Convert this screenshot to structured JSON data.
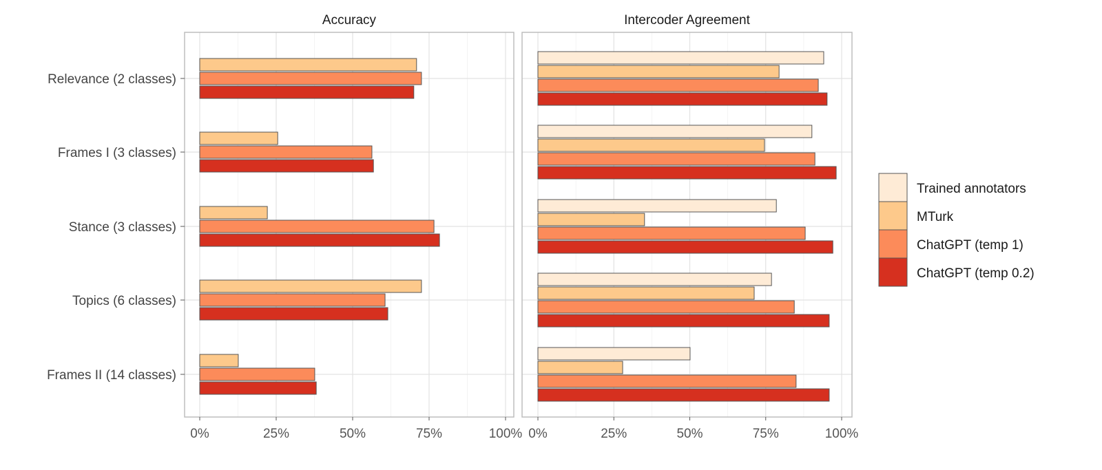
{
  "chart_data": {
    "type": "bar",
    "orientation": "horizontal",
    "categories": [
      "Relevance (2 classes)",
      "Frames I (3 classes)",
      "Stance (3 classes)",
      "Topics (6 classes)",
      "Frames II (14 classes)"
    ],
    "xlim": [
      0,
      100
    ],
    "x_ticks": [
      "0%",
      "25%",
      "50%",
      "75%",
      "100%"
    ],
    "grid": true,
    "legend_position": "right",
    "legend": [
      {
        "name": "Trained annotators",
        "color": "#feebd6"
      },
      {
        "name": "MTurk",
        "color": "#fdc98b"
      },
      {
        "name": "ChatGPT (temp 1)",
        "color": "#fc8b5a"
      },
      {
        "name": "ChatGPT (temp 0.2)",
        "color": "#d6301f"
      }
    ],
    "panels": [
      {
        "title": "Accuracy",
        "series": [
          {
            "name": "MTurk",
            "values": [
              70.9,
              25.5,
              22.1,
              72.5,
              12.6
            ]
          },
          {
            "name": "ChatGPT (temp 1)",
            "values": [
              72.5,
              56.3,
              76.6,
              60.6,
              37.6
            ]
          },
          {
            "name": "ChatGPT (temp 0.2)",
            "values": [
              70.0,
              56.8,
              78.4,
              61.5,
              38.1
            ]
          }
        ]
      },
      {
        "title": "Intercoder Agreement",
        "series": [
          {
            "name": "Trained annotators",
            "values": [
              94.1,
              90.2,
              78.5,
              76.9,
              50.1
            ]
          },
          {
            "name": "MTurk",
            "values": [
              79.4,
              74.6,
              35.1,
              71.2,
              27.9
            ]
          },
          {
            "name": "ChatGPT (temp 1)",
            "values": [
              92.3,
              91.2,
              88.0,
              84.4,
              85.0
            ]
          },
          {
            "name": "ChatGPT (temp 0.2)",
            "values": [
              95.2,
              98.2,
              97.1,
              95.9,
              95.9
            ]
          }
        ]
      }
    ]
  }
}
